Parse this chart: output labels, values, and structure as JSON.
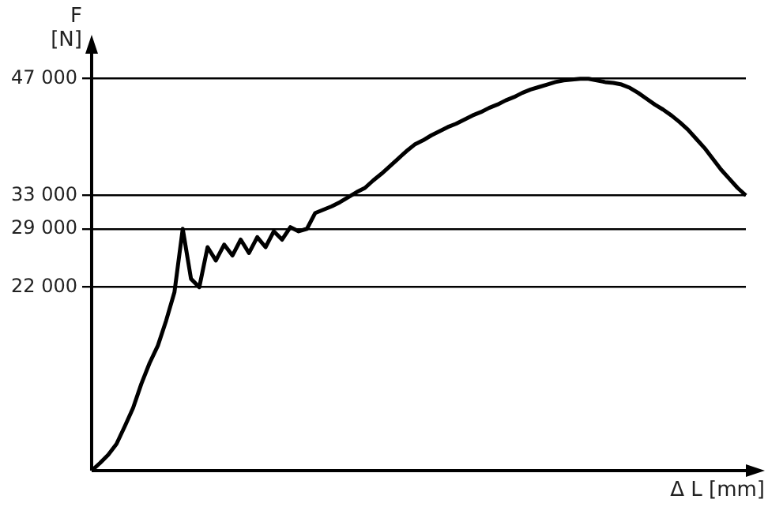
{
  "chart_data": {
    "type": "line",
    "ylabel": "F\n[N]",
    "xlabel": "Δ L [mm]",
    "categories": [
      null,
      null,
      null,
      null,
      null,
      null,
      null,
      null,
      null,
      null,
      null,
      null,
      null,
      null,
      null,
      null,
      null,
      null,
      null,
      null,
      null,
      null,
      null,
      null,
      null,
      null,
      null,
      null,
      null,
      null,
      null,
      null,
      null,
      null,
      null,
      null,
      null,
      null,
      null,
      null,
      null,
      null,
      null,
      null,
      null,
      null,
      null,
      null,
      null,
      null,
      null,
      null,
      null,
      null,
      null,
      null,
      null,
      null,
      null,
      null,
      null,
      null,
      null,
      null,
      null,
      null,
      null,
      null,
      null,
      null,
      null,
      null,
      null,
      null,
      null,
      null,
      null,
      null,
      null,
      null
    ],
    "series": [
      {
        "color": "#000000",
        "values": [
          0,
          900,
          1900,
          3200,
          5300,
          7500,
          10400,
          12900,
          15000,
          18000,
          21400,
          29000,
          23000,
          22000,
          26800,
          25200,
          27100,
          25800,
          27700,
          26100,
          28000,
          26800,
          28700,
          27700,
          29200,
          28700,
          29000,
          30900,
          31300,
          31700,
          32200,
          32800,
          33400,
          33900,
          34800,
          35600,
          36500,
          37400,
          38300,
          39100,
          39600,
          40200,
          40700,
          41200,
          41600,
          42100,
          42600,
          43000,
          43500,
          43900,
          44400,
          44800,
          45300,
          45700,
          46000,
          46300,
          46600,
          46800,
          46900,
          47000,
          47000,
          46800,
          46600,
          46500,
          46300,
          45900,
          45300,
          44600,
          43900,
          43300,
          42600,
          41800,
          40900,
          39800,
          38700,
          37400,
          36100,
          35000,
          33900,
          33000
        ]
      }
    ],
    "ylim": [
      0,
      50000
    ],
    "yticks": [
      {
        "value": 22000,
        "label": "22 000"
      },
      {
        "value": 29000,
        "label": "29 000"
      },
      {
        "value": 33000,
        "label": "33 000"
      },
      {
        "value": 47000,
        "label": "47 000"
      }
    ],
    "tick_labels": "y",
    "grid": "y",
    "marker": "none",
    "line_style": "solid",
    "legend": false
  }
}
